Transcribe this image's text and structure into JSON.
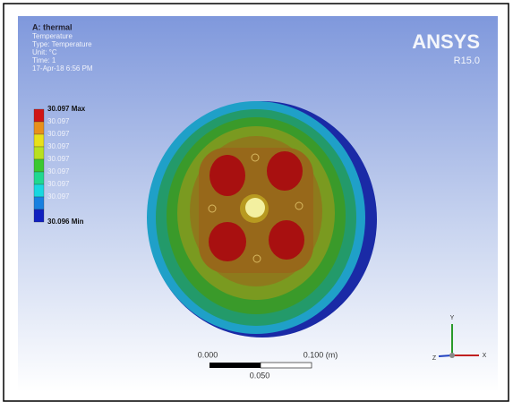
{
  "header": {
    "title": "A: thermal",
    "lines": [
      "Temperature",
      "Type: Temperature",
      "Unit: °C",
      "Time: 1",
      "17-Apr-18 6:56 PM"
    ]
  },
  "legend": {
    "entries": [
      {
        "label": "30.097 Max",
        "color": "#d01515"
      },
      {
        "label": "30.097",
        "color": "#e8901a"
      },
      {
        "label": "30.097",
        "color": "#e8e01a"
      },
      {
        "label": "30.097",
        "color": "#b8e020"
      },
      {
        "label": "30.097",
        "color": "#3ac830"
      },
      {
        "label": "30.097",
        "color": "#20d890"
      },
      {
        "label": "30.097",
        "color": "#18d8e0"
      },
      {
        "label": "30.097",
        "color": "#1880e0"
      },
      {
        "label": "30.096 Min",
        "color": "#1020c0"
      }
    ]
  },
  "brand": {
    "name": "ANSYS",
    "release": "R15.0"
  },
  "scale_bar": {
    "start": "0.000",
    "end": "0.100 (m)",
    "middle": "0.050"
  },
  "triad": {
    "y": "Y",
    "x": "X",
    "z": "Z"
  }
}
